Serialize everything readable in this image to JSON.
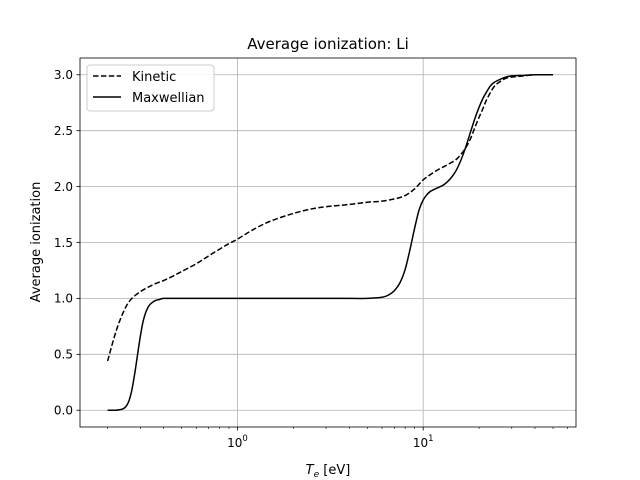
{
  "chart_data": {
    "type": "line",
    "title": "Average ionization: Li",
    "xlabel_main": "T",
    "xlabel_sub": "e",
    "xlabel_unit": " [eV]",
    "ylabel": "Average ionization",
    "x_scale": "log",
    "xlim": [
      0.142,
      66.5
    ],
    "ylim": [
      -0.15,
      3.15
    ],
    "grid": true,
    "legend_position": "top-left",
    "x_ticks": [
      {
        "base": "10",
        "exp": "0",
        "value": 1
      },
      {
        "base": "10",
        "exp": "1",
        "value": 10
      }
    ],
    "y_ticks": [
      {
        "label": "0.0",
        "value": 0.0
      },
      {
        "label": "0.5",
        "value": 0.5
      },
      {
        "label": "1.0",
        "value": 1.0
      },
      {
        "label": "1.5",
        "value": 1.5
      },
      {
        "label": "2.0",
        "value": 2.0
      },
      {
        "label": "2.5",
        "value": 2.5
      },
      {
        "label": "3.0",
        "value": 3.0
      }
    ],
    "series": [
      {
        "name": "Kinetic",
        "style": "dashed",
        "color": "#000000",
        "x": [
          0.2,
          0.215,
          0.23,
          0.25,
          0.27,
          0.3,
          0.33,
          0.36,
          0.4,
          0.45,
          0.5,
          0.6,
          0.7,
          0.8,
          0.9,
          1.0,
          1.2,
          1.5,
          2.0,
          2.5,
          3.0,
          4.0,
          5.0,
          6.0,
          7.0,
          8.0,
          9.0,
          10.0,
          11.0,
          12.0,
          13.0,
          14.0,
          15.0,
          16.0,
          17.0,
          18.0,
          19.0,
          20.0,
          21.0,
          22.0,
          24.0,
          26.0,
          28.0,
          30.0,
          35.0,
          40.0,
          50.0
        ],
        "y": [
          0.44,
          0.63,
          0.78,
          0.92,
          1.0,
          1.06,
          1.1,
          1.13,
          1.16,
          1.2,
          1.24,
          1.31,
          1.38,
          1.44,
          1.49,
          1.53,
          1.61,
          1.69,
          1.76,
          1.8,
          1.82,
          1.84,
          1.86,
          1.87,
          1.89,
          1.92,
          1.98,
          2.06,
          2.11,
          2.15,
          2.18,
          2.21,
          2.24,
          2.29,
          2.35,
          2.43,
          2.53,
          2.62,
          2.7,
          2.78,
          2.89,
          2.94,
          2.97,
          2.98,
          2.99,
          3.0,
          3.0
        ]
      },
      {
        "name": "Maxwellian",
        "style": "solid",
        "color": "#000000",
        "x": [
          0.2,
          0.22,
          0.24,
          0.25,
          0.26,
          0.27,
          0.28,
          0.29,
          0.3,
          0.31,
          0.32,
          0.33,
          0.34,
          0.36,
          0.38,
          0.4,
          0.45,
          0.5,
          0.6,
          1.0,
          2.0,
          4.0,
          5.0,
          6.0,
          6.5,
          7.0,
          7.5,
          8.0,
          8.5,
          9.0,
          9.5,
          10.0,
          10.5,
          11.0,
          12.0,
          13.0,
          14.0,
          15.0,
          16.0,
          17.0,
          18.0,
          19.0,
          20.0,
          21.0,
          22.0,
          23.0,
          24.0,
          26.0,
          28.0,
          30.0,
          35.0,
          40.0,
          50.0
        ],
        "y": [
          0.0,
          0.0,
          0.01,
          0.03,
          0.08,
          0.18,
          0.33,
          0.5,
          0.66,
          0.79,
          0.87,
          0.92,
          0.95,
          0.98,
          0.99,
          1.0,
          1.0,
          1.0,
          1.0,
          1.0,
          1.0,
          1.0,
          1.0,
          1.01,
          1.03,
          1.07,
          1.14,
          1.26,
          1.44,
          1.63,
          1.79,
          1.88,
          1.93,
          1.96,
          1.99,
          2.02,
          2.07,
          2.14,
          2.24,
          2.36,
          2.49,
          2.61,
          2.71,
          2.79,
          2.85,
          2.9,
          2.93,
          2.96,
          2.98,
          2.99,
          2.995,
          3.0,
          3.0
        ]
      }
    ]
  }
}
